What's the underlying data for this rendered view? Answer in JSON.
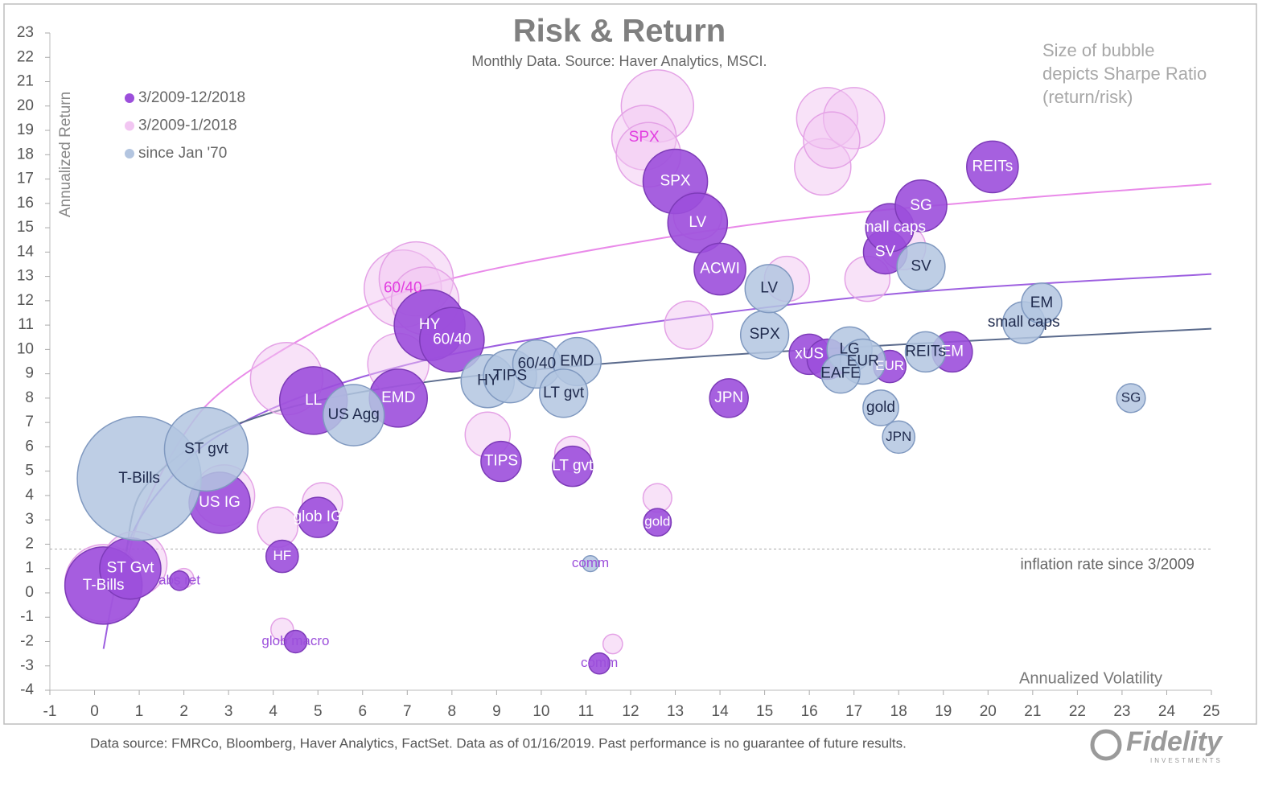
{
  "chart_data": {
    "type": "bubble",
    "title": "Risk & Return",
    "subtitle": "Monthly Data.  Source: Haver Analytics, MSCI.",
    "y_label": "Annualized Return",
    "x_label": "Annualized Volatility",
    "note": "Size of bubble depicts Sharpe Ratio (return/risk)",
    "xlim": [
      -1,
      25
    ],
    "xticks": [
      -1,
      0,
      1,
      2,
      3,
      4,
      5,
      6,
      7,
      8,
      9,
      10,
      11,
      12,
      13,
      14,
      15,
      16,
      17,
      18,
      19,
      20,
      21,
      22,
      23,
      24,
      25
    ],
    "ylim": [
      -4,
      23
    ],
    "yticks": [
      -4,
      -3,
      -2,
      -1,
      0,
      1,
      2,
      3,
      4,
      5,
      6,
      7,
      8,
      9,
      10,
      11,
      12,
      13,
      14,
      15,
      16,
      17,
      18,
      19,
      20,
      21,
      22,
      23
    ],
    "inflation_line": {
      "value": 1.8,
      "label": "inflation rate since 3/2009"
    },
    "series": [
      {
        "name": "3/2009-1/2018",
        "color": "#f2c6f2",
        "label_color": "#e23de0",
        "x": [
          0.2,
          0.9,
          2.0,
          2.9,
          4.1,
          5.1,
          4.3,
          6.8,
          6.9,
          7.2,
          7.4,
          8.8,
          10.7,
          12.6,
          12.6,
          12.3,
          12.4,
          13.5,
          13.3,
          15.5,
          16.3,
          16.4,
          17.0,
          16.5,
          17.3,
          18.1,
          11.6,
          4.2
        ],
        "y": [
          0.4,
          1.2,
          0.6,
          4.0,
          2.7,
          3.7,
          8.8,
          9.4,
          12.5,
          12.9,
          12.0,
          6.5,
          5.7,
          3.9,
          20.0,
          18.7,
          18.0,
          15.5,
          11.0,
          12.9,
          17.5,
          19.5,
          19.5,
          18.6,
          12.9,
          14.2,
          -2.1,
          -1.5
        ],
        "sizes": [
          1.88,
          1.31,
          0.12,
          1.18,
          0.51,
          0.51,
          1.65,
          1.18,
          1.88,
          1.73,
          1.44,
          0.64,
          0.4,
          0.26,
          1.65,
          1.31,
          1.31,
          0.73,
          0.73,
          0.64,
          1.0,
          1.18,
          1.18,
          1.0,
          0.64,
          0.64,
          0.12,
          0.16
        ],
        "labels": [
          null,
          null,
          null,
          null,
          null,
          null,
          null,
          null,
          "60/40",
          null,
          null,
          null,
          null,
          null,
          null,
          "SPX",
          null,
          null,
          null,
          null,
          null,
          null,
          null,
          null,
          null,
          null,
          null,
          null
        ]
      },
      {
        "name": "3/2009-12/2018",
        "color": "#9c4fdb",
        "label_color": "#ffffff",
        "x": [
          0.2,
          0.8,
          1.9,
          2.8,
          4.2,
          5.0,
          4.9,
          6.8,
          7.5,
          8.0,
          9.1,
          10.7,
          12.6,
          13.0,
          13.5,
          14.0,
          14.2,
          16.0,
          16.4,
          17.8,
          17.7,
          17.8,
          18.5,
          19.2,
          20.1,
          4.5,
          11.3
        ],
        "y": [
          0.3,
          1.0,
          0.5,
          3.7,
          1.5,
          3.1,
          7.9,
          8.0,
          11.0,
          10.4,
          5.4,
          5.2,
          2.9,
          16.9,
          15.2,
          13.3,
          8.0,
          9.8,
          9.6,
          9.3,
          14.0,
          15.0,
          15.9,
          9.9,
          17.5,
          -2.0,
          -2.9
        ],
        "sizes": [
          1.88,
          1.18,
          0.12,
          1.18,
          0.33,
          0.51,
          1.44,
          1.06,
          1.58,
          1.31,
          0.51,
          0.51,
          0.24,
          1.31,
          1.12,
          0.84,
          0.47,
          0.51,
          0.51,
          0.33,
          0.6,
          0.73,
          0.84,
          0.51,
          0.84,
          0.16,
          0.14
        ],
        "labels": [
          "T-Bills",
          "ST Gvt",
          "abs ret",
          "US IG",
          "HF",
          "glob IG",
          "LL",
          "EMD",
          "HY",
          "60/40",
          "TIPS",
          "LT gvt",
          "gold",
          "SPX",
          "LV",
          "ACWI",
          "JPN",
          "xUS",
          null,
          "EUR",
          "SV",
          "small caps",
          "SG",
          "EM",
          "REITs",
          "glob macro",
          "comm"
        ]
      },
      {
        "name": "since Jan '70",
        "color": "#b3c5e0",
        "label_color": "#1f2a4d",
        "x": [
          1.0,
          2.5,
          5.8,
          8.8,
          9.3,
          9.9,
          10.8,
          10.5,
          11.1,
          15.0,
          15.1,
          16.9,
          17.2,
          16.7,
          17.6,
          18.0,
          18.5,
          18.6,
          20.8,
          21.2,
          23.2
        ],
        "y": [
          4.7,
          5.9,
          7.3,
          8.7,
          8.9,
          9.4,
          9.5,
          8.2,
          1.2,
          10.6,
          12.5,
          10.0,
          9.5,
          9.0,
          7.6,
          6.4,
          13.4,
          9.9,
          11.1,
          11.9,
          8.0
        ],
        "sizes": [
          4.84,
          2.2,
          1.18,
          0.89,
          0.89,
          0.73,
          0.73,
          0.73,
          0.08,
          0.73,
          0.73,
          0.64,
          0.64,
          0.47,
          0.4,
          0.33,
          0.73,
          0.51,
          0.55,
          0.51,
          0.26
        ],
        "labels": [
          "T-Bills",
          "ST gvt",
          "US Agg",
          "HY",
          "TIPS",
          "60/40",
          "EMD",
          "LT gvt",
          "comm",
          "SPX",
          "LV",
          "LG",
          "EUR",
          "EAFE",
          "gold",
          "JPN",
          "SV",
          "REITs",
          "small caps",
          "EM",
          "SG"
        ]
      }
    ],
    "legend_order": [
      1,
      0,
      2
    ],
    "trendlines": [
      {
        "color": "#e98ae9",
        "x": [
          0.6,
          1,
          2,
          3,
          5,
          7,
          10,
          15,
          20,
          25
        ],
        "y": [
          0.2,
          3.0,
          6.5,
          8.5,
          10.8,
          12.4,
          13.7,
          15.2,
          16.1,
          16.8
        ]
      },
      {
        "color": "#9d5fe0",
        "x": [
          0.2,
          0.5,
          1,
          2,
          3,
          5,
          8,
          12,
          18,
          25
        ],
        "y": [
          -2.3,
          0.5,
          3.0,
          5.3,
          6.7,
          8.3,
          9.8,
          11.0,
          12.3,
          13.1
        ]
      },
      {
        "color": "#5a6a8c",
        "x": [
          0.7,
          1,
          2,
          3,
          5,
          8,
          12,
          18,
          25
        ],
        "y": [
          1.5,
          4.0,
          5.8,
          6.8,
          7.9,
          8.8,
          9.5,
          10.2,
          10.85
        ]
      }
    ]
  },
  "footer": "Data source: FMRCo, Bloomberg, Haver Analytics, FactSet.  Data as of 01/16/2019. Past performance is no guarantee of future results.",
  "logo": {
    "name": "Fidelity",
    "tagline": "INVESTMENTS"
  }
}
